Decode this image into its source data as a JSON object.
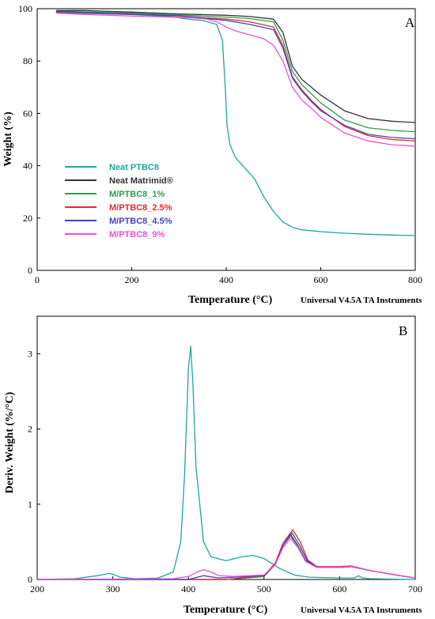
{
  "chart_data": [
    {
      "type": "line",
      "panel_label": "A",
      "xlabel": "Temperature (°C)",
      "ylabel": "Weight (%)",
      "instrument_note": "Universal V4.5A TA Instruments",
      "xlim": [
        0,
        800
      ],
      "ylim": [
        0,
        100
      ],
      "xticks": [
        "0",
        "200",
        "400",
        "600",
        "800"
      ],
      "yticks": [
        "0",
        "20",
        "40",
        "60",
        "80",
        "100"
      ],
      "grid": false,
      "legend_position": "center-left",
      "series": [
        {
          "name": "Neat PTBC8",
          "color": "#1aa89a",
          "x": [
            40,
            100,
            200,
            280,
            300,
            320,
            350,
            380,
            392,
            398,
            402,
            408,
            420,
            440,
            460,
            480,
            500,
            520,
            540,
            560,
            600,
            650,
            700,
            750,
            800
          ],
          "y": [
            98.5,
            98.2,
            97.8,
            97.0,
            96.5,
            96.0,
            95.5,
            94.0,
            88.0,
            70.0,
            55.0,
            48.0,
            43.0,
            39.0,
            35.0,
            28.0,
            22.5,
            18.5,
            16.5,
            15.5,
            14.8,
            14.2,
            13.8,
            13.5,
            13.3
          ]
        },
        {
          "name": "Neat Matrimid®",
          "color": "#333333",
          "x": [
            40,
            100,
            200,
            300,
            400,
            450,
            500,
            520,
            540,
            560,
            580,
            600,
            650,
            700,
            750,
            800
          ],
          "y": [
            99.3,
            99.3,
            98.7,
            98.0,
            97.5,
            97.0,
            96.0,
            91.0,
            78.0,
            73.0,
            70.0,
            67.0,
            61.0,
            58.0,
            57.0,
            56.5
          ]
        },
        {
          "name": "M/PTBC8_1%",
          "color": "#2e9e4a",
          "x": [
            40,
            100,
            200,
            300,
            400,
            450,
            500,
            520,
            540,
            560,
            580,
            600,
            650,
            700,
            750,
            800
          ],
          "y": [
            99.0,
            98.8,
            98.3,
            97.6,
            96.8,
            96.2,
            95.0,
            88.0,
            76.0,
            71.0,
            67.5,
            64.0,
            57.5,
            54.5,
            53.5,
            53.0
          ]
        },
        {
          "name": "M/PTBC8_2.5%",
          "color": "#e02b2b",
          "x": [
            40,
            100,
            200,
            300,
            400,
            450,
            500,
            520,
            540,
            560,
            580,
            600,
            650,
            700,
            750,
            800
          ],
          "y": [
            98.8,
            98.5,
            97.9,
            97.2,
            96.0,
            95.0,
            93.0,
            86.0,
            74.0,
            69.0,
            65.0,
            61.5,
            55.0,
            51.5,
            50.0,
            49.5
          ]
        },
        {
          "name": "M/PTBC8_4.5%",
          "color": "#4040c8",
          "x": [
            40,
            100,
            200,
            300,
            400,
            450,
            500,
            520,
            540,
            560,
            580,
            600,
            650,
            700,
            750,
            800
          ],
          "y": [
            98.9,
            98.6,
            98.0,
            97.3,
            95.5,
            94.0,
            92.0,
            85.0,
            73.5,
            68.5,
            64.5,
            61.0,
            55.5,
            52.0,
            50.8,
            50.3
          ]
        },
        {
          "name": "M/PTBC8_9%",
          "color": "#ee4ed8",
          "x": [
            40,
            100,
            200,
            280,
            330,
            360,
            380,
            400,
            420,
            450,
            480,
            500,
            520,
            540,
            560,
            580,
            600,
            650,
            700,
            750,
            800
          ],
          "y": [
            98.3,
            97.8,
            97.2,
            96.8,
            96.5,
            96.0,
            95.0,
            93.0,
            91.5,
            90.0,
            88.5,
            86.0,
            80.0,
            70.0,
            65.0,
            62.0,
            58.5,
            52.5,
            49.5,
            48.0,
            47.5
          ]
        }
      ]
    },
    {
      "type": "line",
      "panel_label": "B",
      "xlabel": "Temperature (°C)",
      "ylabel": "Deriv. Weight (%/°C)",
      "instrument_note": "Universal V4.5A TA Instruments",
      "xlim": [
        200,
        700
      ],
      "ylim": [
        0,
        3.5
      ],
      "xticks": [
        "200",
        "300",
        "400",
        "500",
        "600",
        "700"
      ],
      "yticks": [
        "0",
        "1",
        "2",
        "3"
      ],
      "grid": false,
      "series": [
        {
          "name": "Neat PTBC8",
          "color": "#1aa89a",
          "x": [
            200,
            250,
            280,
            295,
            300,
            310,
            330,
            360,
            380,
            390,
            395,
            400,
            403,
            406,
            410,
            420,
            430,
            450,
            470,
            485,
            500,
            520,
            540,
            560,
            600,
            620,
            625,
            630,
            640,
            700
          ],
          "y": [
            0.0,
            0.01,
            0.05,
            0.08,
            0.07,
            0.03,
            0.01,
            0.02,
            0.1,
            0.5,
            1.4,
            2.8,
            3.1,
            2.6,
            1.5,
            0.5,
            0.3,
            0.25,
            0.3,
            0.32,
            0.28,
            0.15,
            0.06,
            0.03,
            0.02,
            0.02,
            0.05,
            0.02,
            0.01,
            0.0
          ]
        },
        {
          "name": "Neat Matrimid®",
          "color": "#333333",
          "x": [
            200,
            450,
            500,
            515,
            525,
            535,
            545,
            555,
            570,
            600,
            615,
            640,
            680,
            700
          ],
          "y": [
            0.0,
            0.0,
            0.04,
            0.2,
            0.45,
            0.6,
            0.45,
            0.25,
            0.16,
            0.16,
            0.17,
            0.12,
            0.05,
            0.02
          ]
        },
        {
          "name": "M/PTBC8_1%",
          "color": "#2e9e4a",
          "x": [
            200,
            450,
            500,
            515,
            525,
            535,
            545,
            555,
            570,
            600,
            615,
            640,
            680,
            700
          ],
          "y": [
            0.0,
            0.0,
            0.04,
            0.2,
            0.45,
            0.58,
            0.44,
            0.24,
            0.16,
            0.16,
            0.17,
            0.12,
            0.05,
            0.02
          ]
        },
        {
          "name": "M/PTBC8_2.5%",
          "color": "#e02b2b",
          "x": [
            200,
            450,
            500,
            515,
            525,
            538,
            548,
            558,
            570,
            600,
            615,
            640,
            680,
            700
          ],
          "y": [
            0.0,
            0.0,
            0.05,
            0.22,
            0.48,
            0.66,
            0.5,
            0.26,
            0.17,
            0.17,
            0.18,
            0.12,
            0.05,
            0.02
          ]
        },
        {
          "name": "M/PTBC8_4.5%",
          "color": "#4040c8",
          "x": [
            200,
            400,
            420,
            440,
            500,
            515,
            525,
            537,
            547,
            557,
            570,
            600,
            615,
            640,
            680,
            700
          ],
          "y": [
            0.0,
            0.0,
            0.05,
            0.02,
            0.05,
            0.2,
            0.45,
            0.62,
            0.46,
            0.25,
            0.16,
            0.16,
            0.17,
            0.12,
            0.05,
            0.02
          ]
        },
        {
          "name": "M/PTBC8_9%",
          "color": "#ee4ed8",
          "x": [
            200,
            380,
            400,
            412,
            420,
            430,
            440,
            460,
            500,
            515,
            525,
            535,
            545,
            555,
            570,
            600,
            615,
            640,
            680,
            700
          ],
          "y": [
            0.0,
            0.01,
            0.04,
            0.1,
            0.13,
            0.1,
            0.05,
            0.04,
            0.06,
            0.2,
            0.42,
            0.55,
            0.42,
            0.24,
            0.16,
            0.16,
            0.17,
            0.12,
            0.05,
            0.02
          ]
        }
      ]
    }
  ]
}
